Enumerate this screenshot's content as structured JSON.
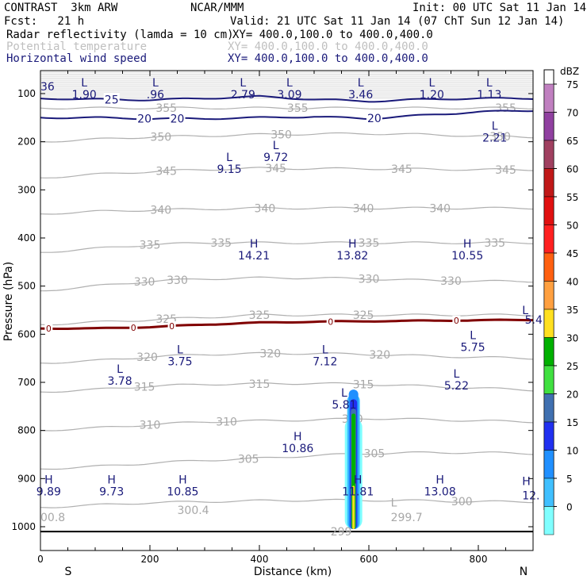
{
  "header": {
    "model": "CONTRAST  3km ARW",
    "center": "NCAR/MMM",
    "init": "Init: 00 UTC Sat 11 Jan 14",
    "fcst": "Fcst:   21 h",
    "valid": "Valid: 21 UTC Sat 11 Jan 14 (07 ChT Sun 12 Jan 14)",
    "fields": [
      {
        "name": "Radar reflectivity (lamda = 10 cm)",
        "xy": "XY= 400.0,100.0 to 400.0,400.0"
      },
      {
        "name": "Potential temperature",
        "xy": "XY= 400.0,100.0 to 400.0,400.0"
      },
      {
        "name": "Horizontal wind speed",
        "xy": "XY= 400.0,100.0 to 400.0,400.0"
      }
    ]
  },
  "chart_data": {
    "type": "cross-section",
    "xlabel": "Distance (km)",
    "ylabel": "Pressure (hPa)",
    "xlim": [
      0,
      900
    ],
    "ylim": [
      1050,
      65
    ],
    "x_ticks": [
      0,
      200,
      400,
      600,
      800
    ],
    "y_ticks": [
      100,
      200,
      300,
      400,
      500,
      600,
      700,
      800,
      900,
      1000
    ],
    "x_end_labels": {
      "left": "S",
      "right": "N"
    },
    "colorbar": {
      "unit": "dBZ",
      "levels": [
        75,
        70,
        65,
        60,
        55,
        50,
        45,
        40,
        35,
        30,
        25,
        20,
        15,
        10,
        5,
        0
      ],
      "colors": [
        "#c080c0",
        "#9040a0",
        "#a04060",
        "#c01818",
        "#e01010",
        "#ff2020",
        "#ff6010",
        "#ffa040",
        "#ffe020",
        "#00b000",
        "#40e040",
        "#4070b0",
        "#2030f0",
        "#2090ff",
        "#40c0ff",
        "#80ffff"
      ]
    },
    "theta_contours": [
      {
        "value": 355,
        "p": [
          130,
          130,
          130,
          130,
          130,
          130,
          130,
          130,
          130,
          130
        ],
        "label_x": [
          230,
          470,
          850
        ]
      },
      {
        "value": 350,
        "p": [
          200,
          195,
          190,
          188,
          185,
          184,
          183,
          185,
          188,
          190
        ],
        "label_x": [
          220,
          440,
          840
        ]
      },
      {
        "value": 345,
        "p": [
          275,
          268,
          262,
          258,
          255,
          256,
          256,
          257,
          258,
          258
        ],
        "label_x": [
          230,
          430,
          660,
          850
        ]
      },
      {
        "value": 340,
        "p": [
          350,
          345,
          342,
          340,
          338,
          338,
          338,
          338,
          338,
          338
        ],
        "label_x": [
          220,
          410,
          590,
          730
        ]
      },
      {
        "value": 335,
        "p": [
          430,
          422,
          414,
          410,
          410,
          410,
          410,
          410,
          410,
          410
        ],
        "label_x": [
          200,
          330,
          600,
          830
        ]
      },
      {
        "value": 330,
        "p": [
          510,
          500,
          490,
          485,
          483,
          483,
          485,
          488,
          490,
          490
        ],
        "label_x": [
          190,
          250,
          600,
          750
        ]
      },
      {
        "value": 325,
        "p": [
          580,
          575,
          570,
          565,
          560,
          560,
          560,
          560,
          560,
          560
        ],
        "label_x": [
          230,
          400,
          590
        ]
      },
      {
        "value": 320,
        "p": [
          660,
          655,
          647,
          642,
          640,
          640,
          642,
          645,
          648,
          650
        ],
        "label_x": [
          195,
          420,
          620
        ]
      },
      {
        "value": 315,
        "p": [
          720,
          715,
          708,
          704,
          703,
          702,
          704,
          708,
          712,
          716
        ],
        "label_x": [
          190,
          400,
          590
        ]
      },
      {
        "value": 310,
        "p": [
          800,
          795,
          788,
          782,
          780,
          778,
          775,
          777,
          780,
          782
        ],
        "label_x": [
          200,
          340,
          570
        ]
      },
      {
        "value": 305,
        "p": [
          880,
          875,
          868,
          862,
          858,
          852,
          848,
          846,
          846,
          848
        ],
        "label_x": [
          380,
          610
        ]
      },
      {
        "value": 300,
        "p": [
          960,
          955,
          950,
          948,
          946,
          945,
          945,
          946,
          948,
          948
        ],
        "label_x": [
          770
        ]
      }
    ],
    "wind_contours": [
      {
        "value": 25,
        "p": [
          110,
          112,
          113,
          110,
          106,
          112,
          116,
          112,
          110,
          110
        ],
        "label_x": [
          130
        ]
      },
      {
        "value": 20,
        "p": [
          150,
          150,
          152,
          152,
          150,
          148,
          152,
          145,
          138,
          135
        ],
        "label_x": [
          190,
          250,
          610
        ]
      }
    ],
    "freezing_level": {
      "value": 0,
      "p": [
        588,
        588,
        585,
        580,
        576,
        574,
        573,
        572,
        571,
        570
      ],
      "label_x": [
        15,
        170,
        240,
        530,
        760
      ]
    },
    "highs_lows": [
      {
        "type": "L",
        "value": "1.90",
        "x": 80,
        "p": 85
      },
      {
        "type": "L",
        "value": ".96",
        "x": 210,
        "p": 85
      },
      {
        "type": "L",
        "value": "2.79",
        "x": 370,
        "p": 85
      },
      {
        "type": "L",
        "value": "3.09",
        "x": 455,
        "p": 85
      },
      {
        "type": "L",
        "value": "3.46",
        "x": 585,
        "p": 85
      },
      {
        "type": "L",
        "value": "1.20",
        "x": 715,
        "p": 85
      },
      {
        "type": "L",
        "value": "1.13",
        "x": 820,
        "p": 85
      },
      {
        "type": "L",
        "value": "2.21",
        "x": 830,
        "p": 175
      },
      {
        "type": "L",
        "value": "9.72",
        "x": 430,
        "p": 215
      },
      {
        "type": "L",
        "value": "9.15",
        "x": 345,
        "p": 240
      },
      {
        "type": "H",
        "value": "14.21",
        "x": 390,
        "p": 420
      },
      {
        "type": "H",
        "value": "13.82",
        "x": 570,
        "p": 420
      },
      {
        "type": "H",
        "value": "10.55",
        "x": 780,
        "p": 420
      },
      {
        "type": "L",
        "value": "5.75",
        "x": 790,
        "p": 610
      },
      {
        "type": "L",
        "value": "3.75",
        "x": 255,
        "p": 640
      },
      {
        "type": "L",
        "value": "7.12",
        "x": 520,
        "p": 640
      },
      {
        "type": "L",
        "value": "3.78",
        "x": 145,
        "p": 680
      },
      {
        "type": "L",
        "value": "5.22",
        "x": 760,
        "p": 690
      },
      {
        "type": "L",
        "value": "5.81",
        "x": 555,
        "p": 730
      },
      {
        "type": "H",
        "value": "10.86",
        "x": 470,
        "p": 820
      },
      {
        "type": "H",
        "value": "9.89",
        "x": 15,
        "p": 910
      },
      {
        "type": "H",
        "value": "9.73",
        "x": 130,
        "p": 910
      },
      {
        "type": "H",
        "value": "10.85",
        "x": 260,
        "p": 910
      },
      {
        "type": "H",
        "value": "11.81",
        "x": 580,
        "p": 910
      },
      {
        "type": "H",
        "value": "13.08",
        "x": 730,
        "p": 910
      }
    ],
    "edge_values": [
      {
        "text": "36",
        "x": 0,
        "p": 85,
        "class": "hl"
      },
      {
        "text": "5.4",
        "x": 885,
        "p": 570,
        "class": "hl"
      },
      {
        "text": "12.",
        "x": 880,
        "p": 935,
        "class": "hl"
      },
      {
        "text": "L",
        "x": 880,
        "p": 550,
        "class": "hl"
      },
      {
        "text": "H",
        "x": 880,
        "p": 905,
        "class": "hl"
      },
      {
        "text": "00.8",
        "x": 0,
        "p": 980,
        "class": "gy"
      },
      {
        "text": "300.4",
        "x": 250,
        "p": 965,
        "class": "gy"
      },
      {
        "text": "299.7",
        "x": 640,
        "p": 980,
        "class": "gy"
      },
      {
        "text": "299",
        "x": 530,
        "p": 1010,
        "class": "gy"
      },
      {
        "text": "L",
        "x": 640,
        "p": 950,
        "class": "gy"
      }
    ],
    "reflectivity_column": {
      "x_center": 572,
      "p_top": 715,
      "p_bottom": 1005,
      "max_dbz": 40
    }
  }
}
